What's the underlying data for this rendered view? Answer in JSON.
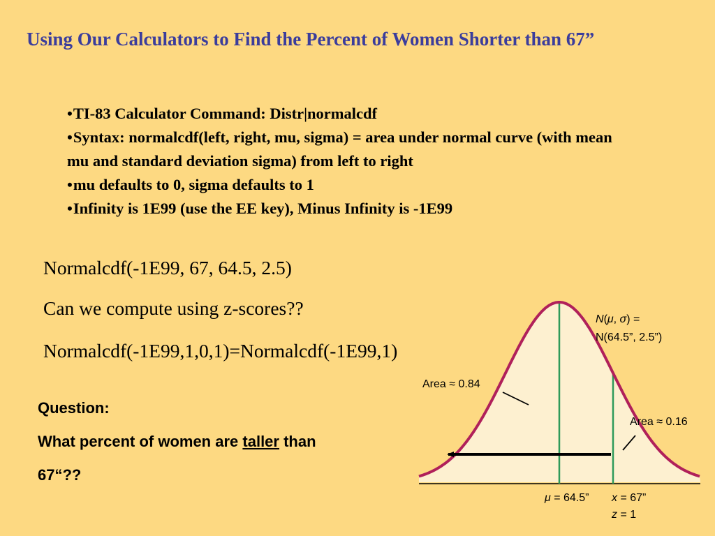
{
  "title": "Using Our Calculators to Find the Percent of Women Shorter than 67”",
  "bullets": [
    {
      "marker": "•",
      "text": "TI-83 Calculator Command:    Distr|normalcdf"
    },
    {
      "marker": "•",
      "text": "Syntax:  normalcdf(left, right, mu, sigma) = area under normal curve (with mean mu and standard deviation sigma) from left to right"
    },
    {
      "marker": "•",
      "text": "mu defaults to 0, sigma defaults to 1"
    },
    {
      "marker": "•",
      "text": "Infinity is 1E99 (use the EE key), Minus Infinity is -1E99"
    }
  ],
  "lines": {
    "normalcdf_call": "Normalcdf(-1E99, 67, 64.5, 2.5)",
    "z_question": "Can we compute using z-scores??",
    "z_equivalence": "Normalcdf(-1E99,1,0,1)=Normalcdf(-1E99,1)"
  },
  "question": {
    "heading": "Question:",
    "text_before": "What percent of women are ",
    "emphasis": "taller",
    "text_after": " than",
    "tail": "67“??"
  },
  "figure": {
    "area_left_label": "Area ≈ 0.84",
    "area_right_label": "Area ≈ 0.16",
    "dist_symbol": "N",
    "dist_open": "(",
    "dist_mu": "μ",
    "dist_comma": ", ",
    "dist_sigma": "σ",
    "dist_close": ") =",
    "dist_params": "N(64.5”, 2.5”)",
    "mu_symbol": "μ",
    "mu_value": " = 64.5”",
    "x_symbol": "x",
    "x_value": " = 67”",
    "z_symbol": "z",
    "z_value": " = 1",
    "mean": 64.5,
    "sd": 2.5,
    "cutoff": 67,
    "colors": {
      "background": "#fdd982",
      "curve": "#b0205a",
      "fill": "#fdf0d0",
      "vertical_lines": "#2e9a5a",
      "title": "#3b3d9c"
    }
  }
}
